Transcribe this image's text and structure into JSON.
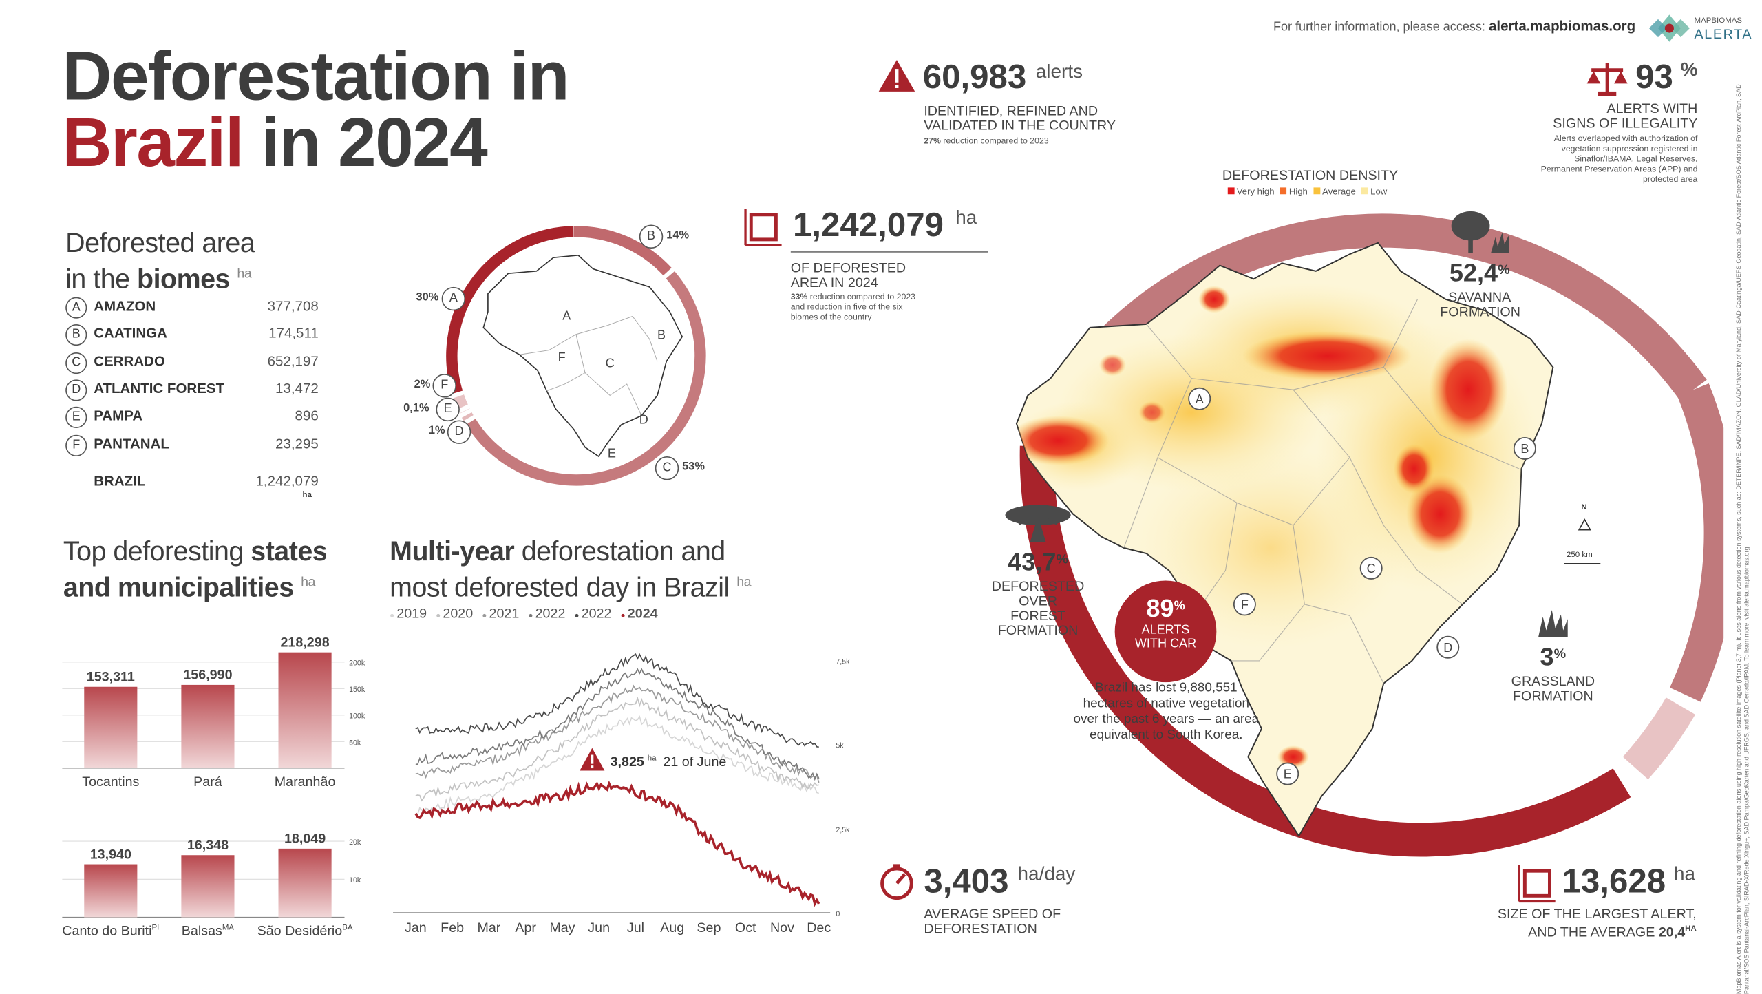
{
  "title": {
    "line1": "Deforestation in",
    "line2_red": "Brazil",
    "line2_rest": " in 2024"
  },
  "top_info": {
    "text": "For further information, please access:",
    "url": "alerta.mapbiomas.org",
    "logo_top": "MAPBIOMAS",
    "logo_bottom": "ALERTA"
  },
  "biomes": {
    "heading1": "Deforested area",
    "heading2a": "in the ",
    "heading2b": "biomes",
    "unit": "ha",
    "rows": [
      {
        "letter": "A",
        "name": "AMAZON",
        "value": "377,708"
      },
      {
        "letter": "B",
        "name": "CAATINGA",
        "value": "174,511"
      },
      {
        "letter": "C",
        "name": "CERRADO",
        "value": "652,197"
      },
      {
        "letter": "D",
        "name": "ATLANTIC FOREST",
        "value": "13,472"
      },
      {
        "letter": "E",
        "name": "PAMPA",
        "value": "896"
      },
      {
        "letter": "F",
        "name": "PANTANAL",
        "value": "23,295"
      }
    ],
    "total_label": "BRAZIL",
    "total_value": "1,242,079",
    "total_unit": "ha"
  },
  "donut": {
    "segments": [
      {
        "letter": "B",
        "pct_label": "14%",
        "value": 14,
        "color": "#c0696d"
      },
      {
        "letter": "C",
        "pct_label": "53%",
        "value": 53,
        "color": "#c57a7d"
      },
      {
        "letter": "D",
        "pct_label": "1%",
        "value": 1,
        "color": "#e3b9ba"
      },
      {
        "letter": "E",
        "pct_label": "0,1%",
        "value": 0.1,
        "color": "#edd4d5"
      },
      {
        "letter": "F",
        "pct_label": "2%",
        "value": 2,
        "color": "#e8c3c4"
      },
      {
        "letter": "A",
        "pct_label": "30%",
        "value": 30,
        "color": "#a8232b"
      }
    ],
    "map_letters": [
      "A",
      "B",
      "C",
      "D",
      "E",
      "F"
    ]
  },
  "states": {
    "heading_a": "Top deforesting ",
    "heading_b": "states",
    "heading_c": "and municipalities",
    "unit": "ha"
  },
  "multiyear": {
    "heading_a": "Multi-year",
    "heading_b": " deforestation and",
    "heading_c": "most deforested day in Brazil",
    "unit": "ha",
    "legend": [
      {
        "label": "2019",
        "color": "#d6d6d6"
      },
      {
        "label": "2020",
        "color": "#c2c2c2"
      },
      {
        "label": "2021",
        "color": "#9a9a9a"
      },
      {
        "label": "2022",
        "color": "#7a7a7a"
      },
      {
        "label": "2022",
        "color": "#4a4a4a"
      },
      {
        "label": "2024",
        "color": "#a8232b"
      }
    ],
    "peak_value": "3,825",
    "peak_unit": "ha",
    "peak_date": "21 of June"
  },
  "alerts": {
    "value": "60,983",
    "unit": "alerts",
    "desc1": "IDENTIFIED, REFINED AND",
    "desc2": "VALIDATED IN THE COUNTRY",
    "note_bold": "27%",
    "note": " reduction compared to 2023"
  },
  "area": {
    "value": "1,242,079",
    "unit": "ha",
    "desc1": "OF DEFORESTED",
    "desc2": "AREA IN 2024",
    "note_bold": "33%",
    "note": " reduction compared to 2023 and reduction in five of the six biomes of the country"
  },
  "illegality": {
    "value": "93",
    "unit": "%",
    "desc1": "ALERTS WITH",
    "desc2": "SIGNS OF ILLEGALITY",
    "note": "Alerts overlapped with authorization of vegetation suppression registered in Sinaflor/IBAMA, Legal Reserves, Permanent Preservation Areas (APP) and protected area"
  },
  "density": {
    "title": "DEFORESTATION DENSITY",
    "items": [
      {
        "label": "Very high",
        "color": "#e31a1c"
      },
      {
        "label": "High",
        "color": "#f46d2a"
      },
      {
        "label": "Average",
        "color": "#f9c23c"
      },
      {
        "label": "Low",
        "color": "#fbe9a0"
      }
    ]
  },
  "savanna": {
    "value": "52,4",
    "unit": "%",
    "desc1": "SAVANNA",
    "desc2": "FORMATION"
  },
  "forest": {
    "value": "43,7",
    "unit": "%",
    "desc1": "DEFORESTED",
    "desc2": "OVER FOREST",
    "desc3": "FORMATION"
  },
  "grassland": {
    "value": "3",
    "unit": "%",
    "desc1": "GRASSLAND",
    "desc2": "FORMATION"
  },
  "car": {
    "value": "89",
    "unit": "%",
    "desc1": "ALERTS",
    "desc2": "WITH CAR"
  },
  "lost": {
    "text": "Brazil has lost 9,880,551 hectares of native vegetation over the past 6 years — an area equivalent to South Korea."
  },
  "speed": {
    "value": "3,403",
    "unit": "ha/day",
    "desc1": "AVERAGE SPEED OF",
    "desc2": "DEFORESTATION"
  },
  "largest": {
    "value": "13,628",
    "unit": "ha",
    "desc1": "SIZE OF THE LARGEST ALERT,",
    "desc2": "AND THE AVERAGE",
    "avg": "20,4",
    "avg_unit": "ha"
  },
  "map": {
    "north": "N",
    "scale": "250 km",
    "letters": [
      "A",
      "B",
      "C",
      "D",
      "E",
      "F"
    ]
  },
  "footnote": "MapBiomas Alert is a system for validating and refining deforestation alerts using high-resolution satellite images (Planet 3,7 m). It uses alerts from various detection systems, such as: DETER/INPE, SAD/IMAZON, GLAD/University of Maryland, SAD-Caatinga/UEFS-Geodatin, SAD-Atlantic Forest/SOS Atlantic Forest-ArcPlan, SAD Pantanal/SOS Pantanal-ArcPlan, SIRAD-X/Rede Xingu+, SAD Pampa/GeoKarten and UFRGS, and SAD Cerrado/IPAM. To learn more, visit alerta.mapbiomas.org",
  "chart_data": [
    {
      "type": "bar",
      "title": "Top deforesting states",
      "unit": "ha",
      "categories": [
        "Tocantins",
        "Pará",
        "Maranhão"
      ],
      "values": [
        153311,
        156990,
        218298
      ],
      "value_labels": [
        "153,311",
        "156,990",
        "218,298"
      ],
      "ylim": [
        0,
        230000
      ],
      "yticks": [
        50000,
        100000,
        150000,
        200000
      ],
      "ytick_labels": [
        "50k",
        "100k",
        "150k",
        "200k"
      ],
      "grid": true
    },
    {
      "type": "bar",
      "title": "Top deforesting municipalities",
      "unit": "ha",
      "categories": [
        "Canto do Buriti",
        "Balsas",
        "São Desidério"
      ],
      "category_sups": [
        "PI",
        "MA",
        "BA"
      ],
      "values": [
        13940,
        16348,
        18049
      ],
      "value_labels": [
        "13,940",
        "16,348",
        "18,049"
      ],
      "ylim": [
        0,
        22000
      ],
      "yticks": [
        10000,
        20000
      ],
      "ytick_labels": [
        "10k",
        "20k"
      ],
      "grid": true
    },
    {
      "type": "line",
      "title": "Multi-year deforestation and most deforested day in Brazil",
      "unit": "ha",
      "x": [
        "Jan",
        "Feb",
        "Mar",
        "Apr",
        "May",
        "Jun",
        "Jul",
        "Aug",
        "Sep",
        "Oct",
        "Nov",
        "Dec"
      ],
      "ylim": [
        0,
        8000
      ],
      "yticks": [
        0,
        2500,
        5000,
        7500
      ],
      "ytick_labels": [
        "0",
        "2,5k",
        "5k",
        "7,5k"
      ],
      "series": [
        {
          "name": "2019",
          "color": "#d6d6d6",
          "values": [
            3000,
            3300,
            3500,
            4000,
            4600,
            5400,
            5800,
            5300,
            4800,
            4300,
            3900,
            3600
          ]
        },
        {
          "name": "2020",
          "color": "#c2c2c2",
          "values": [
            3400,
            3700,
            3900,
            4300,
            5000,
            5800,
            6300,
            5800,
            5200,
            4600,
            4000,
            3700
          ]
        },
        {
          "name": "2021",
          "color": "#9a9a9a",
          "values": [
            4100,
            4300,
            4500,
            4900,
            5500,
            6200,
            6700,
            6300,
            5700,
            5000,
            4400,
            4000
          ]
        },
        {
          "name": "2022",
          "color": "#7a7a7a",
          "values": [
            4500,
            4700,
            4800,
            5100,
            5600,
            6600,
            7200,
            6700,
            6000,
            5200,
            4500,
            4000
          ]
        },
        {
          "name": "2022",
          "color": "#4a4a4a",
          "values": [
            5400,
            5400,
            5500,
            5700,
            6200,
            7000,
            7700,
            7100,
            6200,
            5700,
            5200,
            4900
          ]
        },
        {
          "name": "2024",
          "color": "#a8232b",
          "values": [
            2900,
            3100,
            3200,
            3300,
            3500,
            3825,
            3600,
            3200,
            2200,
            1400,
            900,
            300
          ]
        }
      ],
      "annotation": {
        "label": "3,825 ha 21 of June",
        "x": "Jun",
        "y": 3825
      }
    },
    {
      "type": "pie",
      "title": "Deforested area in the biomes",
      "unit": "ha",
      "categories": [
        "AMAZON",
        "CAATINGA",
        "CERRADO",
        "ATLANTIC FOREST",
        "PAMPA",
        "PANTANAL"
      ],
      "values": [
        377708,
        174511,
        652197,
        13472,
        896,
        23295
      ],
      "percent_labels": [
        "30%",
        "14%",
        "53%",
        "1%",
        "0,1%",
        "2%"
      ]
    }
  ]
}
